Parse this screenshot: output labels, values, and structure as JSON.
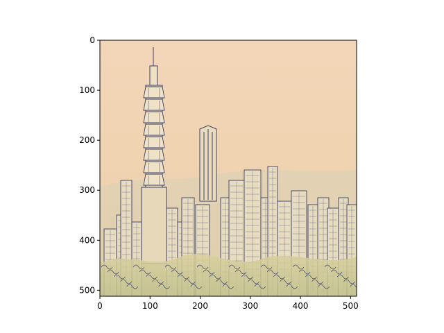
{
  "figure": {
    "image_description": "pencil-and-watercolor sketch of a city skyline with a tall pagoda-style tower",
    "axes": {
      "x": {
        "range": [
          0,
          512
        ],
        "ticks": [
          0,
          100,
          200,
          300,
          400,
          500
        ],
        "labels": [
          "0",
          "100",
          "200",
          "300",
          "400",
          "500"
        ]
      },
      "y": {
        "range": [
          0,
          512
        ],
        "inverted": true,
        "ticks": [
          0,
          100,
          200,
          300,
          400,
          500
        ],
        "labels": [
          "0",
          "100",
          "200",
          "300",
          "400",
          "500"
        ]
      }
    },
    "colors": {
      "paper_top": "#f3d6b8",
      "paper_bottom": "#e2d2a0",
      "ink": "#3a3f66",
      "frame": "#000000"
    }
  }
}
